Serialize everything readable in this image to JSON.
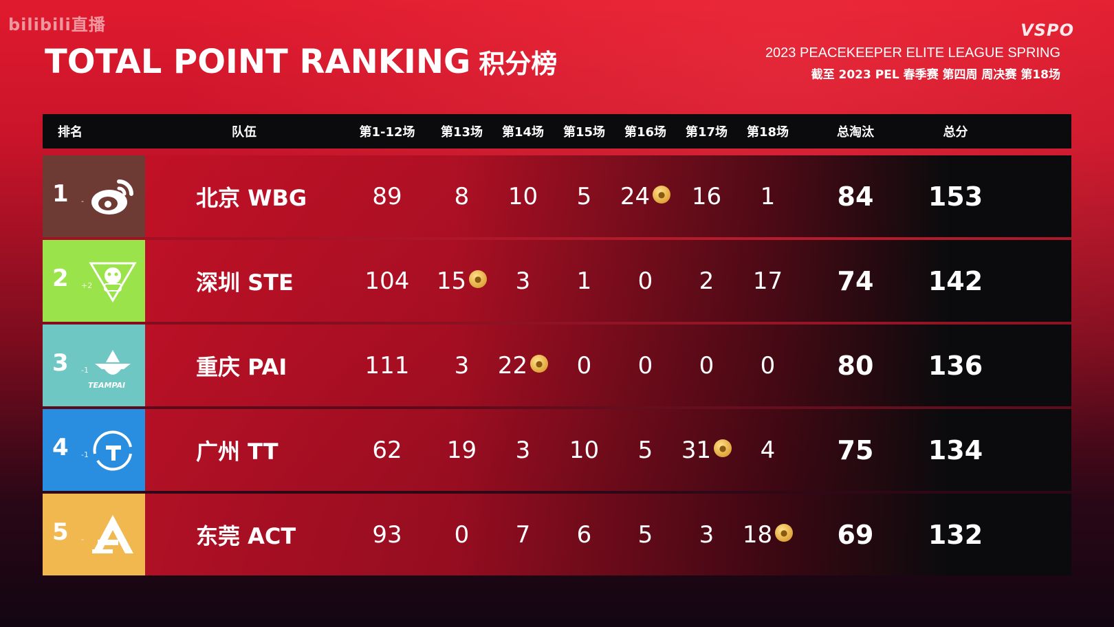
{
  "watermark": "bilibili直播",
  "title": "TOTAL POINT RANKING",
  "title_cn": "积分榜",
  "brand": "VSPO",
  "league": "2023 PEACEKEEPER ELITE LEAGUE SPRING",
  "subleague": "截至 2023 PEL 春季赛 第四周 周决赛 第18场",
  "columns": [
    "排名",
    "队伍",
    "第1-12场",
    "第13场",
    "第14场",
    "第15场",
    "第16场",
    "第17场",
    "第18场",
    "总淘汰",
    "总分"
  ],
  "colors": {
    "row1": "#6e3a34",
    "row2": "#9be34a",
    "row3": "#6fc7c3",
    "row4": "#2a8ee0",
    "row5": "#f0b84e",
    "medal": "#e0a53a"
  },
  "rows": [
    {
      "rank": "1",
      "change": "-",
      "logo": "weibo-logo-icon",
      "team": "北京 WBG",
      "base": "89",
      "m13": "8",
      "m14": "10",
      "m15": "5",
      "m16": "24",
      "m17": "16",
      "m18": "1",
      "elim": "84",
      "total": "153",
      "medal_match": "m16"
    },
    {
      "rank": "2",
      "change": "+2",
      "logo": "ste-logo-icon",
      "team": "深圳 STE",
      "base": "104",
      "m13": "15",
      "m14": "3",
      "m15": "1",
      "m16": "0",
      "m17": "2",
      "m18": "17",
      "elim": "74",
      "total": "142",
      "medal_match": "m13"
    },
    {
      "rank": "3",
      "change": "-1",
      "logo": "teampai-logo-icon",
      "logo_text": "TEAMPAI",
      "team": "重庆 PAI",
      "base": "111",
      "m13": "3",
      "m14": "22",
      "m15": "0",
      "m16": "0",
      "m17": "0",
      "m18": "0",
      "elim": "80",
      "total": "136",
      "medal_match": "m14"
    },
    {
      "rank": "4",
      "change": "-1",
      "logo": "tt-logo-icon",
      "team": "广州 TT",
      "base": "62",
      "m13": "19",
      "m14": "3",
      "m15": "10",
      "m16": "5",
      "m17": "31",
      "m18": "4",
      "elim": "75",
      "total": "134",
      "medal_match": "m17"
    },
    {
      "rank": "5",
      "change": "-",
      "logo": "act-logo-icon",
      "team": "东莞 ACT",
      "base": "93",
      "m13": "0",
      "m14": "7",
      "m15": "6",
      "m16": "5",
      "m17": "3",
      "m18": "18",
      "elim": "69",
      "total": "132",
      "medal_match": "m18"
    }
  ]
}
